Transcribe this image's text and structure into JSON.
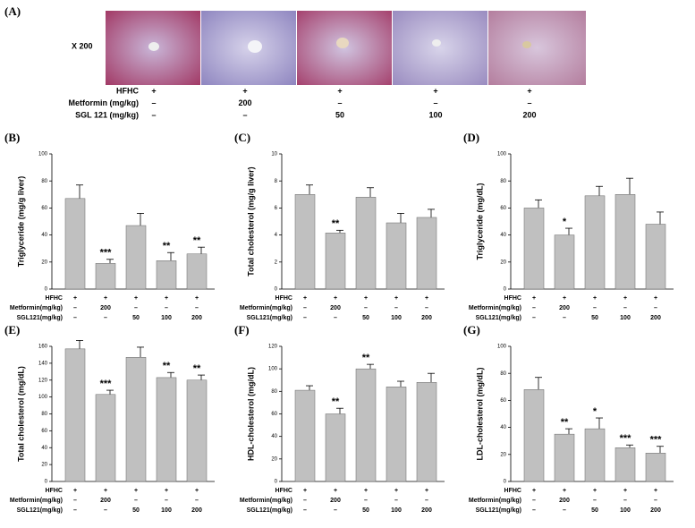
{
  "panel_a": {
    "label": "(A)",
    "magnification": "X 200",
    "rows": [
      {
        "name": "HFHC",
        "cells": [
          "+",
          "+",
          "+",
          "+",
          "+"
        ]
      },
      {
        "name": "Metformin (mg/kg)",
        "cells": [
          "–",
          "200",
          "–",
          "–",
          "–"
        ]
      },
      {
        "name": "SGL 121 (mg/kg)",
        "cells": [
          "–",
          "–",
          "50",
          "100",
          "200"
        ]
      }
    ]
  },
  "chart_data": [
    {
      "type": "bar",
      "label": "(B)",
      "y_label": "Triglyceride (mg/g liver)",
      "color": "#c0c0c0",
      "values": [
        67,
        19,
        47,
        21,
        26
      ],
      "errors": [
        10,
        3,
        9,
        6,
        5
      ],
      "annotations": [
        null,
        "***",
        null,
        "**",
        "**"
      ],
      "ylim": [
        0,
        100
      ],
      "yticks": [
        0,
        20,
        40,
        60,
        80,
        100
      ],
      "treatments": [
        {
          "name": "HFHC",
          "cells": [
            "+",
            "+",
            "+",
            "+",
            "+"
          ]
        },
        {
          "name": "Metformin(mg/kg)",
          "cells": [
            "–",
            "200",
            "–",
            "–",
            "–"
          ]
        },
        {
          "name": "SGL121(mg/kg)",
          "cells": [
            "–",
            "–",
            "50",
            "100",
            "200"
          ]
        }
      ]
    },
    {
      "type": "bar",
      "label": "(C)",
      "y_label": "Total cholesterol (mg/g liver)",
      "color": "#c0c0c0",
      "values": [
        7.0,
        4.15,
        6.8,
        4.9,
        5.3
      ],
      "errors": [
        0.7,
        0.2,
        0.7,
        0.7,
        0.6
      ],
      "annotations": [
        null,
        "**",
        null,
        null,
        null
      ],
      "ylim": [
        0,
        10
      ],
      "yticks": [
        0,
        2,
        4,
        6,
        8,
        10
      ],
      "treatments": [
        {
          "name": "HFHC",
          "cells": [
            "+",
            "+",
            "+",
            "+",
            "+"
          ]
        },
        {
          "name": "Metformin(mg/kg)",
          "cells": [
            "–",
            "200",
            "–",
            "–",
            "–"
          ]
        },
        {
          "name": "SGL121(mg/kg)",
          "cells": [
            "–",
            "–",
            "50",
            "100",
            "200"
          ]
        }
      ]
    },
    {
      "type": "bar",
      "label": "(D)",
      "y_label": "Triglyceride  (mg/dL)",
      "color": "#c0c0c0",
      "values": [
        60,
        40,
        69,
        70,
        48
      ],
      "errors": [
        6,
        5,
        7,
        12,
        9
      ],
      "annotations": [
        null,
        "*",
        null,
        null,
        null
      ],
      "ylim": [
        0,
        100
      ],
      "yticks": [
        0,
        20,
        40,
        60,
        80,
        100
      ],
      "treatments": [
        {
          "name": "HFHC",
          "cells": [
            "+",
            "+",
            "+",
            "+",
            "+"
          ]
        },
        {
          "name": "Metformin(mg/kg)",
          "cells": [
            "–",
            "200",
            "–",
            "–",
            "–"
          ]
        },
        {
          "name": "SGL121(mg/kg)",
          "cells": [
            "–",
            "–",
            "50",
            "100",
            "200"
          ]
        }
      ]
    },
    {
      "type": "bar",
      "label": "(E)",
      "y_label": "Total cholesterol (mg/dL)",
      "color": "#c0c0c0",
      "values": [
        157,
        103,
        147,
        123,
        120
      ],
      "errors": [
        10,
        5,
        12,
        6,
        6
      ],
      "annotations": [
        null,
        "***",
        null,
        "**",
        "**"
      ],
      "ylim": [
        0,
        160
      ],
      "yticks": [
        0,
        20,
        40,
        60,
        80,
        100,
        120,
        140,
        160
      ],
      "treatments": [
        {
          "name": "HFHC",
          "cells": [
            "+",
            "+",
            "+",
            "+",
            "+"
          ]
        },
        {
          "name": "Metformin(mg/kg)",
          "cells": [
            "–",
            "200",
            "–",
            "–",
            "–"
          ]
        },
        {
          "name": "SGL121(mg/kg)",
          "cells": [
            "–",
            "–",
            "50",
            "100",
            "200"
          ]
        }
      ]
    },
    {
      "type": "bar",
      "label": "(F)",
      "y_label": "HDL-cholesterol (mg/dL)",
      "color": "#c0c0c0",
      "values": [
        81,
        60,
        100,
        84,
        88
      ],
      "errors": [
        4,
        5,
        4,
        5,
        8
      ],
      "annotations": [
        null,
        "**",
        "**",
        null,
        null
      ],
      "ylim": [
        0,
        120
      ],
      "yticks": [
        0,
        20,
        40,
        60,
        80,
        100,
        120
      ],
      "treatments": [
        {
          "name": "HFHC",
          "cells": [
            "+",
            "+",
            "+",
            "+",
            "+"
          ]
        },
        {
          "name": "Metformin(mg/kg)",
          "cells": [
            "–",
            "200",
            "–",
            "–",
            "–"
          ]
        },
        {
          "name": "SGL121(mg/kg)",
          "cells": [
            "–",
            "–",
            "50",
            "100",
            "200"
          ]
        }
      ]
    },
    {
      "type": "bar",
      "label": "(G)",
      "y_label": "LDL-cholesterol (mg/dL)",
      "color": "#c0c0c0",
      "values": [
        68,
        35,
        39,
        25,
        21
      ],
      "errors": [
        9,
        4,
        8,
        2,
        5
      ],
      "annotations": [
        null,
        "**",
        "*",
        "***",
        "***"
      ],
      "ylim": [
        0,
        100
      ],
      "yticks": [
        0,
        20,
        40,
        60,
        80,
        100
      ],
      "treatments": [
        {
          "name": "HFHC",
          "cells": [
            "+",
            "+",
            "+",
            "+",
            "+"
          ]
        },
        {
          "name": "Metformin(mg/kg)",
          "cells": [
            "–",
            "200",
            "–",
            "–",
            "–"
          ]
        },
        {
          "name": "SGL121(mg/kg)",
          "cells": [
            "–",
            "–",
            "50",
            "100",
            "200"
          ]
        }
      ]
    }
  ]
}
